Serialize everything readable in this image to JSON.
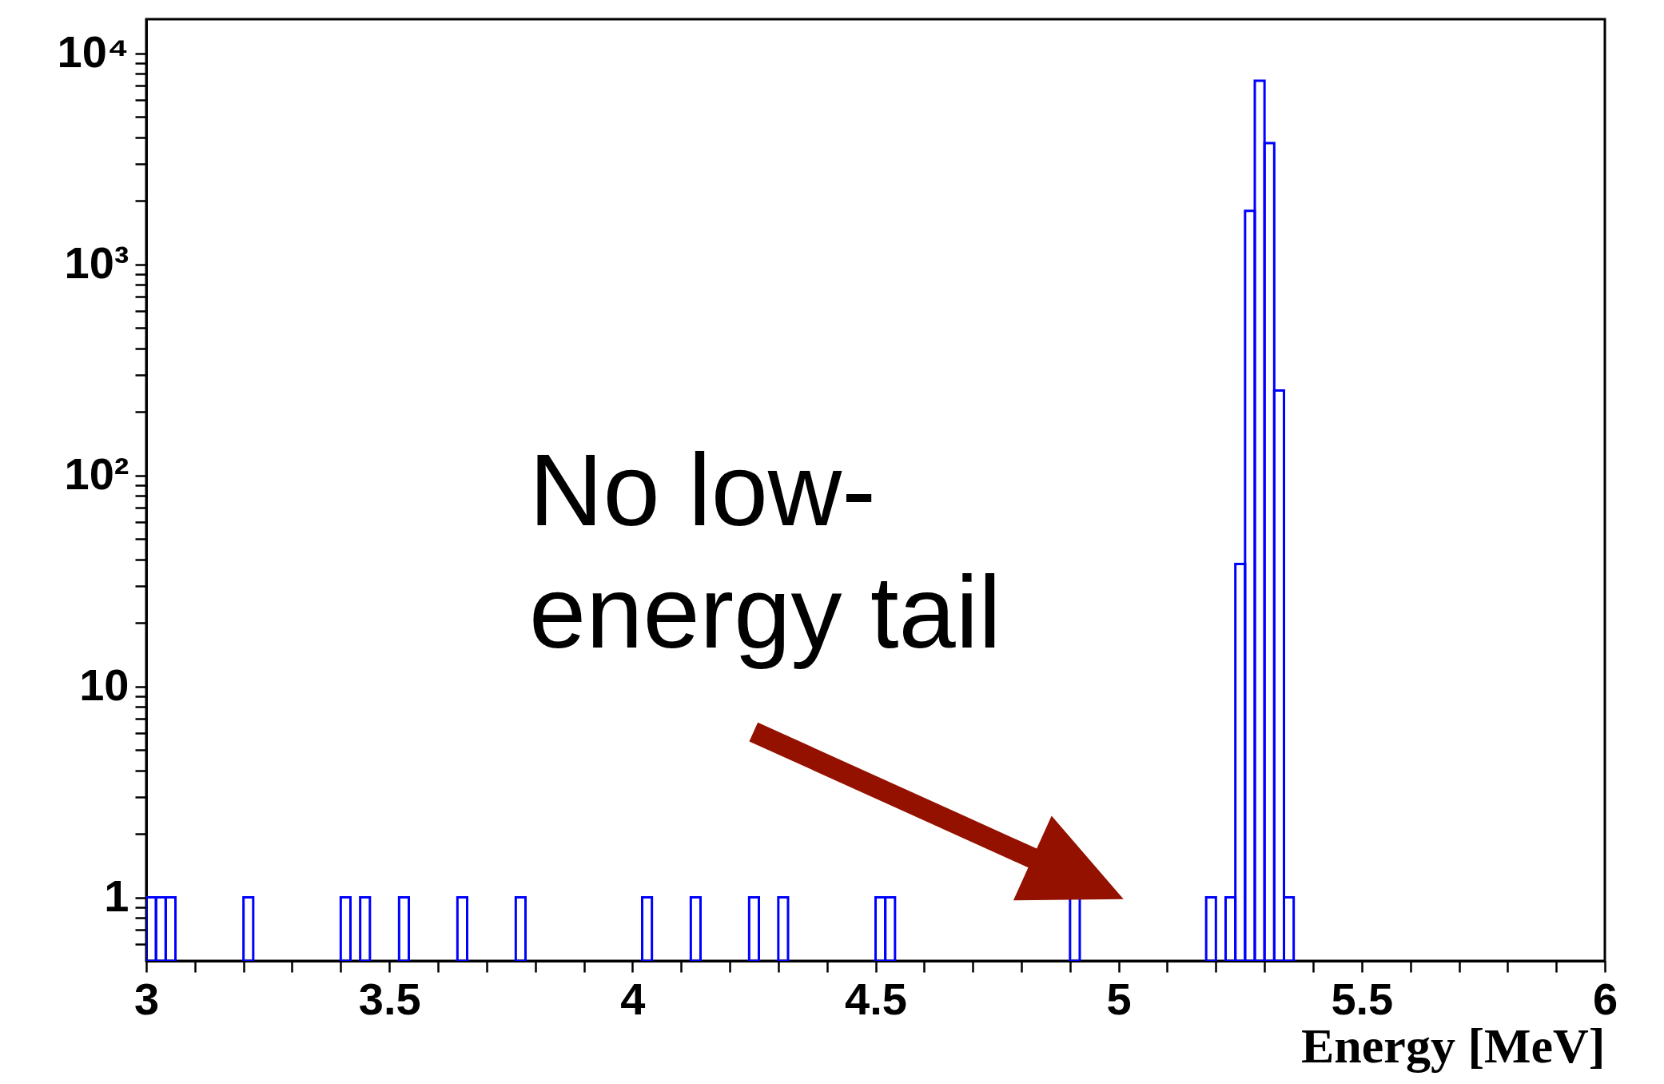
{
  "chart_data": {
    "type": "histogram",
    "xlabel": "Energy [MeV]",
    "bins": [
      3,
      3.02,
      3.04,
      3.06,
      3.08,
      3.1,
      3.12,
      3.14,
      3.16,
      3.18,
      3.2,
      3.22,
      3.24,
      3.26,
      3.28,
      3.3,
      3.32,
      3.34,
      3.36,
      3.38,
      3.4,
      3.42,
      3.44,
      3.46,
      3.48,
      3.5,
      3.52,
      3.54,
      3.56,
      3.58,
      3.6,
      3.62,
      3.64,
      3.66,
      3.68,
      3.7,
      3.72,
      3.74,
      3.76,
      3.78,
      3.8,
      3.82,
      3.84,
      3.86,
      3.88,
      3.9,
      3.92,
      3.94,
      3.96,
      3.98,
      4,
      4.02,
      4.04,
      4.06,
      4.08,
      4.1,
      4.12,
      4.14,
      4.16,
      4.18,
      4.2,
      4.22,
      4.24,
      4.26,
      4.28,
      4.3,
      4.32,
      4.34,
      4.36,
      4.38,
      4.4,
      4.42,
      4.44,
      4.46,
      4.48,
      4.5,
      4.52,
      4.54,
      4.56,
      4.58,
      4.6,
      4.62,
      4.64,
      4.66,
      4.68,
      4.7,
      4.72,
      4.74,
      4.76,
      4.78,
      4.8,
      4.82,
      4.84,
      4.86,
      4.88,
      4.9,
      4.92,
      4.94,
      4.96,
      4.98,
      5,
      5.02,
      5.04,
      5.06,
      5.08,
      5.1,
      5.12,
      5.14,
      5.16,
      5.18,
      5.2,
      5.22,
      5.24,
      5.26,
      5.28,
      5.3,
      5.32,
      5.34,
      5.36,
      5.38,
      5.4,
      5.42,
      5.44,
      5.46,
      5.48,
      5.5,
      5.52,
      5.54,
      5.56,
      5.58,
      5.6,
      5.62,
      5.64,
      5.66,
      5.68,
      5.7,
      5.72,
      5.74,
      5.76,
      5.78,
      5.8,
      5.82,
      5.84,
      5.86,
      5.88,
      5.9,
      5.92,
      5.94,
      5.96,
      5.98,
      6
    ],
    "values": [
      1,
      1,
      1,
      null,
      null,
      null,
      null,
      null,
      null,
      null,
      1,
      null,
      null,
      null,
      null,
      null,
      null,
      null,
      null,
      null,
      1,
      null,
      1,
      null,
      null,
      null,
      1,
      null,
      null,
      null,
      null,
      null,
      1,
      null,
      null,
      null,
      null,
      null,
      1,
      null,
      null,
      null,
      null,
      null,
      null,
      null,
      null,
      null,
      null,
      null,
      null,
      1,
      null,
      null,
      null,
      null,
      1,
      null,
      null,
      null,
      null,
      null,
      1,
      null,
      null,
      1,
      null,
      null,
      null,
      null,
      null,
      null,
      null,
      null,
      null,
      1,
      1,
      null,
      null,
      null,
      null,
      null,
      null,
      null,
      null,
      null,
      null,
      null,
      null,
      null,
      null,
      null,
      null,
      null,
      null,
      1,
      null,
      null,
      null,
      null,
      null,
      null,
      null,
      null,
      null,
      null,
      null,
      null,
      null,
      1,
      null,
      1,
      38,
      1790,
      7400,
      3750,
      252,
      1,
      null,
      null,
      null,
      null,
      null,
      null,
      null,
      null,
      null,
      null,
      null,
      null,
      null,
      null,
      null,
      null,
      null,
      null,
      null,
      null,
      null,
      null,
      null,
      null,
      null,
      null,
      null,
      null,
      null,
      null,
      null,
      null
    ],
    "color": "#0000ff",
    "log": true,
    "xlim": [
      3,
      6
    ],
    "xticks": [
      3,
      {
        "value": 3.1,
        "label": null
      },
      {
        "value": 3.2,
        "label": null
      },
      {
        "value": 3.3,
        "label": null
      },
      {
        "value": 3.4,
        "label": null
      },
      3.5,
      {
        "value": 3.6,
        "label": null
      },
      {
        "value": 3.7,
        "label": null
      },
      {
        "value": 3.8,
        "label": null
      },
      {
        "value": 3.9,
        "label": null
      },
      4,
      {
        "value": 4.1,
        "label": null
      },
      {
        "value": 4.2,
        "label": null
      },
      {
        "value": 4.3,
        "label": null
      },
      {
        "value": 4.4,
        "label": null
      },
      4.5,
      {
        "value": 4.6,
        "label": null
      },
      {
        "value": 4.7,
        "label": null
      },
      {
        "value": 4.8,
        "label": null
      },
      {
        "value": 4.9,
        "label": null
      },
      5,
      {
        "value": 5.1,
        "label": null
      },
      {
        "value": 5.2,
        "label": null
      },
      {
        "value": 5.3,
        "label": null
      },
      {
        "value": 5.4,
        "label": null
      },
      5.5,
      {
        "value": 5.6,
        "label": null
      },
      {
        "value": 5.7,
        "label": null
      },
      {
        "value": 5.8,
        "label": null
      },
      {
        "value": 5.9,
        "label": null
      },
      6
    ],
    "ylim": [
      0.5,
      14500
    ],
    "yticks": [
      {
        "value": 0.6,
        "label": null
      },
      {
        "value": 0.7,
        "label": null
      },
      {
        "value": 0.8,
        "label": null
      },
      {
        "value": 0.9,
        "label": null
      },
      1,
      {
        "value": 2,
        "label": null
      },
      {
        "value": 3,
        "label": null
      },
      {
        "value": 4,
        "label": null
      },
      {
        "value": 5,
        "label": null
      },
      {
        "value": 6,
        "label": null
      },
      {
        "value": 7,
        "label": null
      },
      {
        "value": 8,
        "label": null
      },
      {
        "value": 9,
        "label": null
      },
      10,
      {
        "value": 20,
        "label": null
      },
      {
        "value": 30,
        "label": null
      },
      {
        "value": 40,
        "label": null
      },
      {
        "value": 50,
        "label": null
      },
      {
        "value": 60,
        "label": null
      },
      {
        "value": 70,
        "label": null
      },
      {
        "value": 80,
        "label": null
      },
      {
        "value": 90,
        "label": null
      },
      {
        "value": 100,
        "label": "10²"
      },
      {
        "value": 200,
        "label": null
      },
      {
        "value": 300,
        "label": null
      },
      {
        "value": 400,
        "label": null
      },
      {
        "value": 500,
        "label": null
      },
      {
        "value": 600,
        "label": null
      },
      {
        "value": 700,
        "label": null
      },
      {
        "value": 800,
        "label": null
      },
      {
        "value": 900,
        "label": null
      },
      {
        "value": 1000,
        "label": "10³"
      },
      {
        "value": 2000,
        "label": null
      },
      {
        "value": 3000,
        "label": null
      },
      {
        "value": 4000,
        "label": null
      },
      {
        "value": 5000,
        "label": null
      },
      {
        "value": 6000,
        "label": null
      },
      {
        "value": 7000,
        "label": null
      },
      {
        "value": 8000,
        "label": null
      },
      {
        "value": 9000,
        "label": null
      },
      {
        "value": 10000,
        "label": "10⁴"
      }
    ],
    "annotations": [
      "No low-energy tail"
    ],
    "grid": false
  }
}
